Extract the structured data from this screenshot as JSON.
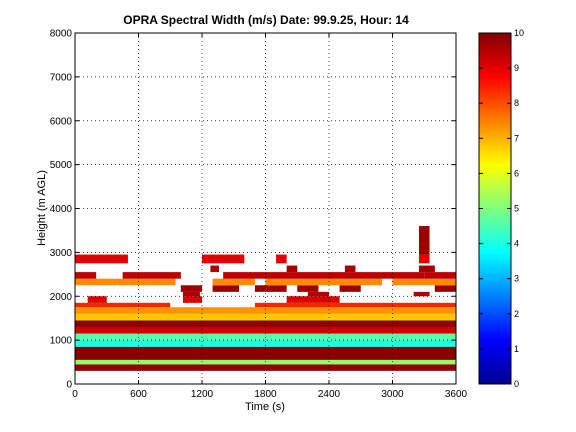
{
  "chart_data": {
    "type": "heatmap",
    "title": "OPRA Spectral Width (m/s)  Date: 99.9.25, Hour: 14",
    "xlabel": "Time (s)",
    "ylabel": "Height (m AGL)",
    "xlim": [
      0,
      3600
    ],
    "ylim": [
      0,
      8000
    ],
    "xticks": [
      0,
      600,
      1200,
      1800,
      2400,
      3000,
      3600
    ],
    "yticks": [
      0,
      1000,
      2000,
      3000,
      4000,
      5000,
      6000,
      7000,
      8000
    ],
    "grid": true,
    "colorbar": {
      "label_min": 0,
      "label_max": 10,
      "ticks": [
        0,
        1,
        2,
        3,
        4,
        5,
        6,
        7,
        8,
        9,
        10
      ],
      "colormap": "jet"
    },
    "gates": [
      {
        "height_bottom": 300,
        "height_top": 450,
        "value": 9.8,
        "coverage": [
          [
            0,
            3600
          ]
        ]
      },
      {
        "height_bottom": 450,
        "height_top": 550,
        "value": 5.2,
        "coverage": [
          [
            0,
            3600
          ]
        ]
      },
      {
        "height_bottom": 550,
        "height_top": 850,
        "value": 9.9,
        "coverage": [
          [
            0,
            3600
          ]
        ]
      },
      {
        "height_bottom": 850,
        "height_top": 1000,
        "value": 4.0,
        "coverage": [
          [
            0,
            3600
          ]
        ]
      },
      {
        "height_bottom": 1000,
        "height_top": 1150,
        "value": 4.6,
        "coverage": [
          [
            0,
            3600
          ]
        ]
      },
      {
        "height_bottom": 1150,
        "height_top": 1300,
        "value": 9.2,
        "coverage": [
          [
            0,
            3600
          ]
        ]
      },
      {
        "height_bottom": 1300,
        "height_top": 1450,
        "value": 9.9,
        "coverage": [
          [
            0,
            3600
          ]
        ]
      },
      {
        "height_bottom": 1450,
        "height_top": 1600,
        "value": 6.8,
        "coverage": [
          [
            0,
            3600
          ]
        ]
      },
      {
        "height_bottom": 1600,
        "height_top": 1750,
        "value": 7.3,
        "coverage": [
          [
            0,
            3600
          ]
        ]
      },
      {
        "height_bottom": 1750,
        "height_top": 1850,
        "value": 8.4,
        "coverage": [
          [
            0,
            900
          ],
          [
            1700,
            3600
          ]
        ]
      },
      {
        "height_bottom": 1850,
        "height_top": 2000,
        "value": 9.1,
        "coverage": [
          [
            120,
            300
          ],
          [
            1020,
            1200
          ],
          [
            2000,
            2500
          ]
        ]
      },
      {
        "height_bottom": 2000,
        "height_top": 2100,
        "value": 9.5,
        "coverage": [
          [
            1020,
            1180
          ],
          [
            2200,
            2400
          ],
          [
            3200,
            3350
          ]
        ]
      },
      {
        "height_bottom": 2100,
        "height_top": 2250,
        "value": 9.7,
        "coverage": [
          [
            1000,
            1200
          ],
          [
            1300,
            1550
          ],
          [
            1700,
            2000
          ],
          [
            2100,
            2300
          ],
          [
            2500,
            2700
          ],
          [
            3400,
            3600
          ]
        ]
      },
      {
        "height_bottom": 2250,
        "height_top": 2400,
        "value": 7.4,
        "coverage": [
          [
            0,
            950
          ],
          [
            1300,
            1700
          ],
          [
            1800,
            2900
          ],
          [
            3000,
            3600
          ]
        ]
      },
      {
        "height_bottom": 2400,
        "height_top": 2550,
        "value": 9.4,
        "coverage": [
          [
            0,
            200
          ],
          [
            450,
            1000
          ],
          [
            1400,
            3300
          ],
          [
            3300,
            3600
          ]
        ]
      },
      {
        "height_bottom": 2550,
        "height_top": 2700,
        "value": 9.6,
        "coverage": [
          [
            1280,
            1360
          ],
          [
            2000,
            2100
          ],
          [
            2550,
            2650
          ],
          [
            3250,
            3400
          ]
        ]
      },
      {
        "height_bottom": 2750,
        "height_top": 2950,
        "value": 9.0,
        "coverage": [
          [
            0,
            500
          ],
          [
            1200,
            1600
          ],
          [
            1900,
            2000
          ],
          [
            3250,
            3350
          ]
        ]
      },
      {
        "height_bottom": 2950,
        "height_top": 3600,
        "value": 9.7,
        "coverage": [
          [
            3250,
            3350
          ]
        ]
      }
    ]
  }
}
